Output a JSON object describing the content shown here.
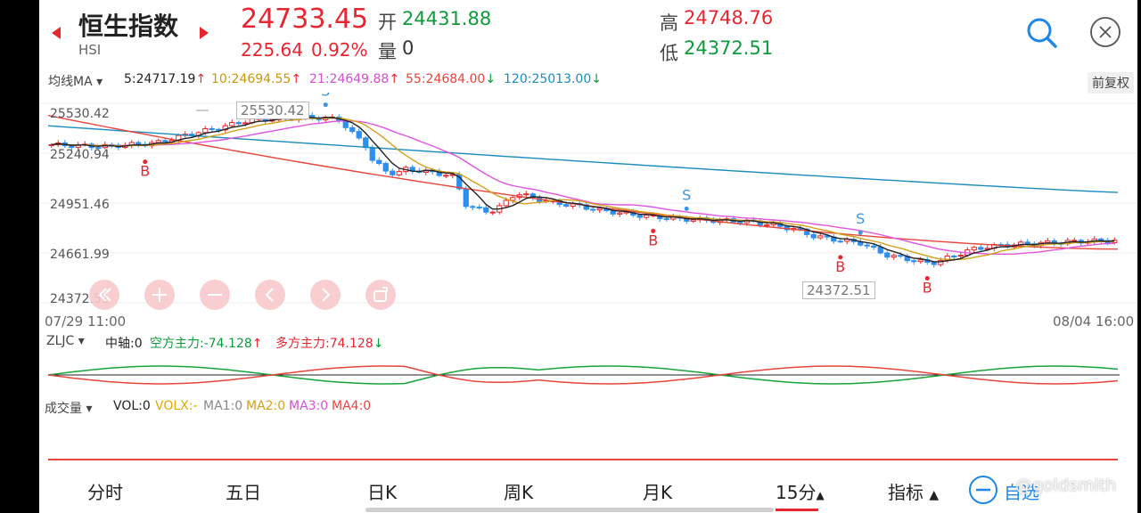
{
  "header": {
    "title": "恒生指数",
    "code": "HSI",
    "price": "24733.45",
    "change": "225.64",
    "change_pct": "0.92%",
    "open_label": "开",
    "open_value": "24431.88",
    "volume_label": "量",
    "volume_value": "0",
    "high_label": "高",
    "high_value": "24748.76",
    "low_label": "低",
    "low_value": "24372.51"
  },
  "ma_bar": {
    "selector": "均线MA",
    "ma5": "5:24717.19",
    "ma10": "10:24694.55",
    "ma21": "21:24649.88",
    "ma55": "55:24684.00",
    "ma120": "120:25013.00",
    "ma5_dir": "↑",
    "ma10_dir": "↑",
    "ma21_dir": "↑",
    "ma55_dir": "↓",
    "ma120_dir": "↓",
    "adjust_button": "前复权"
  },
  "price_axis": {
    "labels": [
      "25530.42",
      "25240.94",
      "24951.46",
      "24661.99",
      "24372.51"
    ],
    "high_marker": "25530.42",
    "low_marker": "24372.51"
  },
  "time_axis": {
    "start": "07/29 11:00",
    "end": "08/04 16:00"
  },
  "signals": {
    "buy": "B",
    "sell": "S"
  },
  "zljc": {
    "selector": "ZLJC",
    "axis": "中轴:0",
    "short_label": "空方主力:-74.128",
    "short_dir": "↑",
    "long_label": "多方主力:74.128",
    "long_dir": "↓"
  },
  "volume_panel": {
    "selector": "成交量",
    "vol": "VOL:0",
    "volx": "VOLX:-",
    "ma1": "MA1:0",
    "ma2": "MA2:0",
    "ma3": "MA3:0",
    "ma4": "MA4:0"
  },
  "nav": {
    "tabs": [
      "分时",
      "五日",
      "日K",
      "周K",
      "月K",
      "15分",
      "指标"
    ],
    "active_tab": "15分",
    "watchlist": "自选",
    "watermark": "@goldsmith"
  },
  "colors": {
    "up": "#e8262f",
    "down": "#2d8ef0",
    "ma5": "#222222",
    "ma10": "#d4a017",
    "ma21": "#e055e0",
    "ma55": "#e8453c",
    "ma120": "#1a8cbf",
    "accent_blue": "#1f87e8"
  },
  "chart_data": {
    "type": "candlestick",
    "y_range": [
      24372.51,
      25530.42
    ],
    "high": 25530.42,
    "low": 24372.51,
    "x_start": "07/29 11:00",
    "x_end": "08/04 16:00",
    "indicators": [
      "MA5",
      "MA10",
      "MA21",
      "MA55",
      "MA120",
      "ZLJC",
      "VOL"
    ],
    "ma_values": {
      "MA5": 24717.19,
      "MA10": 24694.55,
      "MA21": 24649.88,
      "MA55": 24684.0,
      "MA120": 25013.0
    }
  }
}
